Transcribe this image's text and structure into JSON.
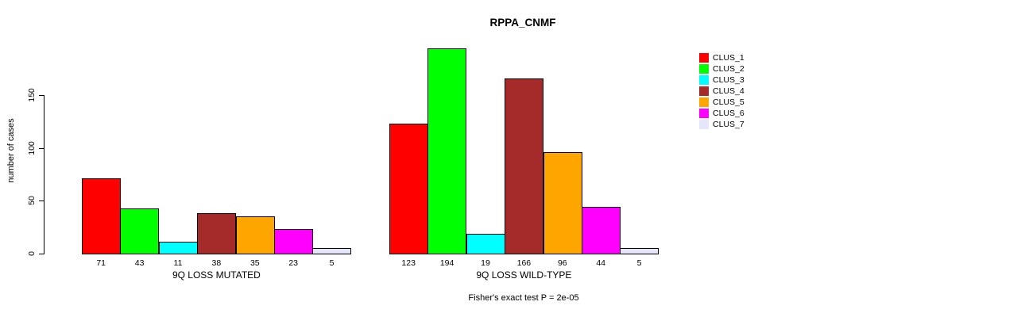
{
  "chart_data": {
    "type": "bar",
    "title": "RPPA_CNMF",
    "ylabel": "number of cases",
    "annotation": "Fisher's exact test P = 2e-05",
    "yticks": [
      0,
      50,
      100,
      150
    ],
    "ylim": [
      0,
      150
    ],
    "grid": false,
    "legend_position": "right",
    "clusters": [
      {
        "name": "CLUS_1",
        "color": "#FF0000"
      },
      {
        "name": "CLUS_2",
        "color": "#00FF00"
      },
      {
        "name": "CLUS_3",
        "color": "#00FFFF"
      },
      {
        "name": "CLUS_4",
        "color": "#A52A2A"
      },
      {
        "name": "CLUS_5",
        "color": "#FFA500"
      },
      {
        "name": "CLUS_6",
        "color": "#FF00FF"
      },
      {
        "name": "CLUS_7",
        "color": "#E6E6FA"
      }
    ],
    "groups": [
      {
        "label": "9Q LOSS MUTATED",
        "values": [
          71,
          43,
          11,
          38,
          35,
          23,
          5
        ]
      },
      {
        "label": "9Q LOSS WILD-TYPE",
        "values": [
          123,
          194,
          19,
          166,
          96,
          44,
          5
        ]
      }
    ]
  }
}
